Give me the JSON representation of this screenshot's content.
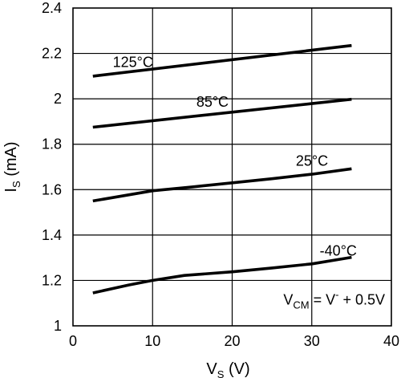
{
  "chart_data": {
    "type": "line",
    "title": "",
    "xlabel": {
      "main": "V",
      "sub": "S",
      "unit": " (V)"
    },
    "ylabel": {
      "main": "I",
      "sub": "S",
      "unit": " (mA)"
    },
    "xlim": [
      0,
      40
    ],
    "ylim": [
      1,
      2.4
    ],
    "x_ticks": [
      0,
      10,
      20,
      30,
      40
    ],
    "y_ticks": [
      1,
      1.2,
      1.4,
      1.6,
      1.8,
      2,
      2.2,
      2.4
    ],
    "x_tick_labels": [
      "0",
      "10",
      "20",
      "30",
      "40"
    ],
    "y_tick_labels": [
      "1",
      "1.2",
      "1.4",
      "1.6",
      "1.8",
      "2",
      "2.2",
      "2.4"
    ],
    "grid": true,
    "series": [
      {
        "name": "125°C",
        "x": [
          2.5,
          35
        ],
        "y": [
          2.1,
          2.235
        ],
        "label_at": [
          5,
          2.14
        ]
      },
      {
        "name": "85°C",
        "x": [
          2.5,
          35
        ],
        "y": [
          1.875,
          1.998
        ],
        "label_at": [
          15.5,
          1.965
        ]
      },
      {
        "name": "25°C",
        "x": [
          2.5,
          5,
          10,
          15,
          20,
          25,
          30,
          35
        ],
        "y": [
          1.55,
          1.565,
          1.595,
          1.612,
          1.63,
          1.648,
          1.668,
          1.692
        ],
        "label_at": [
          28,
          1.705
        ]
      },
      {
        "name": "-40°C",
        "x": [
          2.5,
          7,
          10,
          14,
          20,
          25,
          30,
          35
        ],
        "y": [
          1.145,
          1.18,
          1.2,
          1.222,
          1.238,
          1.255,
          1.273,
          1.302
        ],
        "label_at": [
          31,
          1.31
        ]
      }
    ],
    "annotation": {
      "p1": "V",
      "p1_sub": "CM",
      "p2": " = V",
      "p2_sup": "-",
      "p3": " + 0.5V"
    }
  }
}
